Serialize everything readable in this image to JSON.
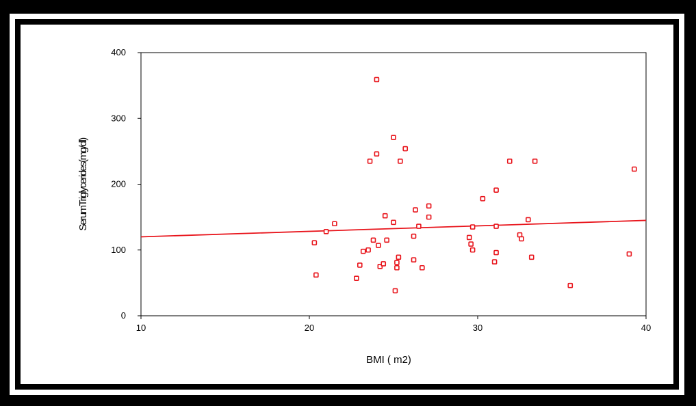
{
  "chart_data": {
    "type": "scatter",
    "title": "",
    "xlabel": "BMI   ( m2)",
    "ylabel": "SerumTriglycerides(mg/dl)",
    "xlim": [
      10,
      40
    ],
    "ylim": [
      0,
      400
    ],
    "xticks": [
      10,
      20,
      30,
      40
    ],
    "yticks": [
      0,
      100,
      200,
      300,
      400
    ],
    "grid": false,
    "marker_color": "#e8141b",
    "line_color": "#e8141b",
    "trendline": {
      "x": [
        10,
        40
      ],
      "y": [
        120,
        145
      ]
    },
    "points": [
      {
        "x": 20.3,
        "y": 111
      },
      {
        "x": 20.4,
        "y": 62
      },
      {
        "x": 21.0,
        "y": 128
      },
      {
        "x": 21.5,
        "y": 140
      },
      {
        "x": 22.8,
        "y": 57
      },
      {
        "x": 23.0,
        "y": 77
      },
      {
        "x": 23.2,
        "y": 98
      },
      {
        "x": 23.5,
        "y": 100
      },
      {
        "x": 23.6,
        "y": 235
      },
      {
        "x": 23.8,
        "y": 115
      },
      {
        "x": 24.0,
        "y": 246
      },
      {
        "x": 24.0,
        "y": 359
      },
      {
        "x": 24.1,
        "y": 107
      },
      {
        "x": 24.2,
        "y": 75
      },
      {
        "x": 24.4,
        "y": 79
      },
      {
        "x": 24.5,
        "y": 152
      },
      {
        "x": 24.6,
        "y": 115
      },
      {
        "x": 25.0,
        "y": 271
      },
      {
        "x": 25.0,
        "y": 142
      },
      {
        "x": 25.1,
        "y": 38
      },
      {
        "x": 25.2,
        "y": 81
      },
      {
        "x": 25.2,
        "y": 73
      },
      {
        "x": 25.3,
        "y": 89
      },
      {
        "x": 25.4,
        "y": 235
      },
      {
        "x": 25.7,
        "y": 254
      },
      {
        "x": 26.2,
        "y": 121
      },
      {
        "x": 26.2,
        "y": 85
      },
      {
        "x": 26.3,
        "y": 161
      },
      {
        "x": 26.5,
        "y": 136
      },
      {
        "x": 26.7,
        "y": 73
      },
      {
        "x": 27.1,
        "y": 167
      },
      {
        "x": 27.1,
        "y": 150
      },
      {
        "x": 29.5,
        "y": 119
      },
      {
        "x": 29.6,
        "y": 109
      },
      {
        "x": 29.7,
        "y": 100
      },
      {
        "x": 29.7,
        "y": 135
      },
      {
        "x": 30.3,
        "y": 178
      },
      {
        "x": 31.0,
        "y": 82
      },
      {
        "x": 31.1,
        "y": 96
      },
      {
        "x": 31.1,
        "y": 136
      },
      {
        "x": 31.1,
        "y": 191
      },
      {
        "x": 31.9,
        "y": 235
      },
      {
        "x": 32.5,
        "y": 123
      },
      {
        "x": 32.6,
        "y": 117
      },
      {
        "x": 33.0,
        "y": 146
      },
      {
        "x": 33.2,
        "y": 89
      },
      {
        "x": 33.4,
        "y": 235
      },
      {
        "x": 35.5,
        "y": 46
      },
      {
        "x": 39.0,
        "y": 94
      },
      {
        "x": 39.3,
        "y": 223
      }
    ]
  }
}
